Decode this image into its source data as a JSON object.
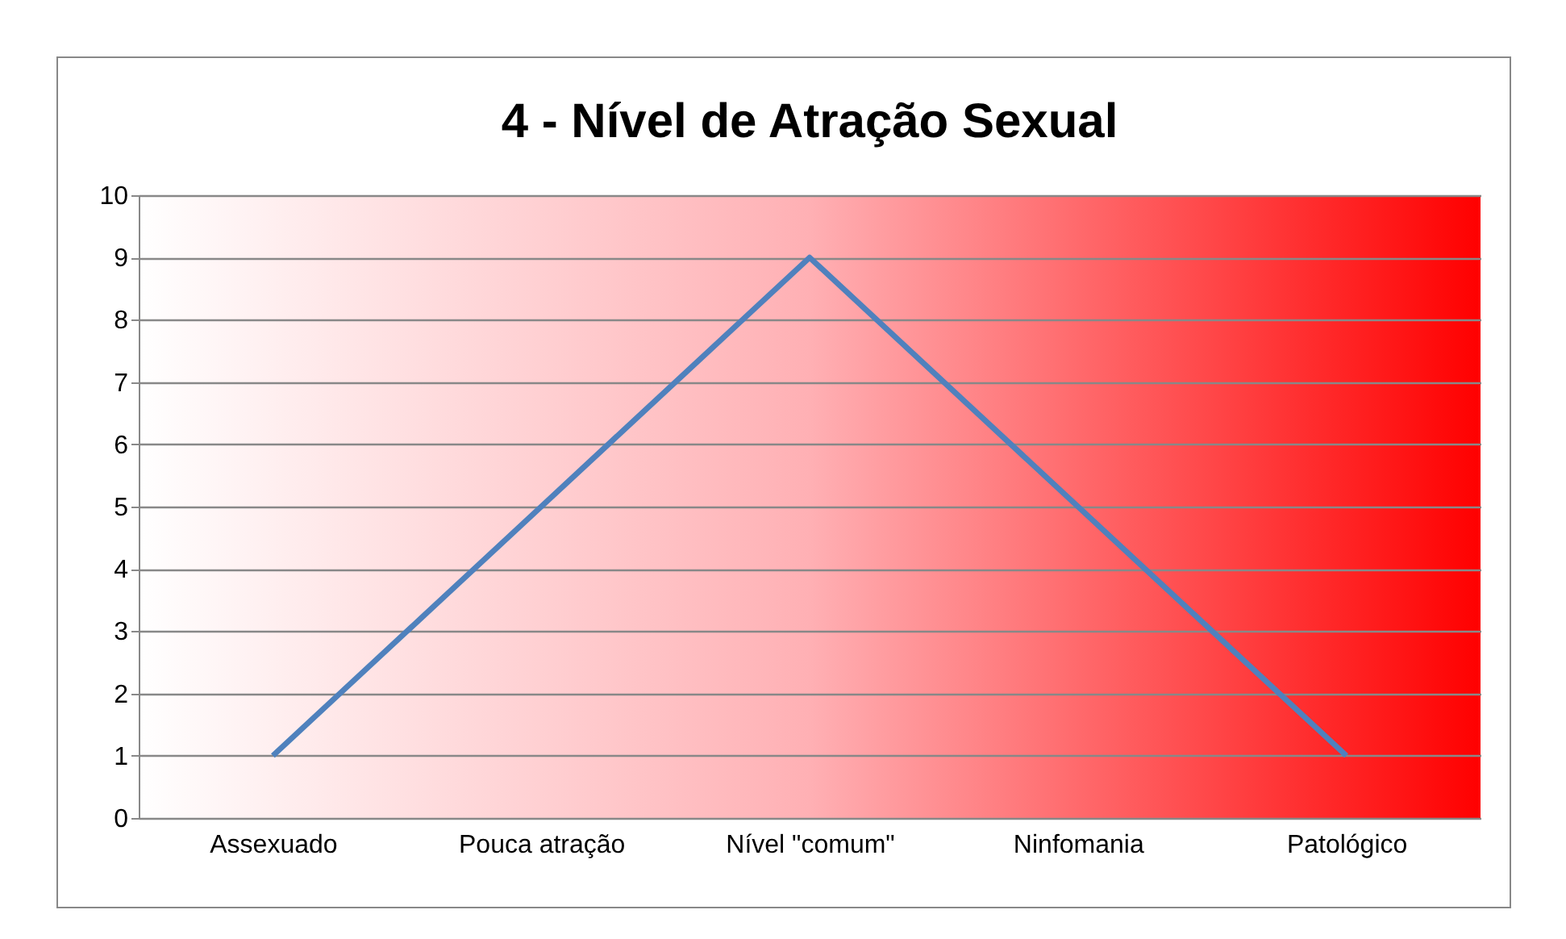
{
  "chart_data": {
    "type": "line",
    "title": "4 - Nível de Atração Sexual",
    "categories": [
      "Assexuado",
      "Pouca atração",
      "Nível \"comum\"",
      "Ninfomania",
      "Patológico"
    ],
    "series": [
      {
        "color": "#4f81bd",
        "values": [
          1,
          5,
          9,
          5,
          1
        ]
      }
    ],
    "ylim": [
      0,
      10
    ],
    "yticks": [
      0,
      1,
      2,
      3,
      4,
      5,
      6,
      7,
      8,
      9,
      10
    ],
    "grid": "y",
    "marker": "none",
    "line_style": "solid"
  }
}
